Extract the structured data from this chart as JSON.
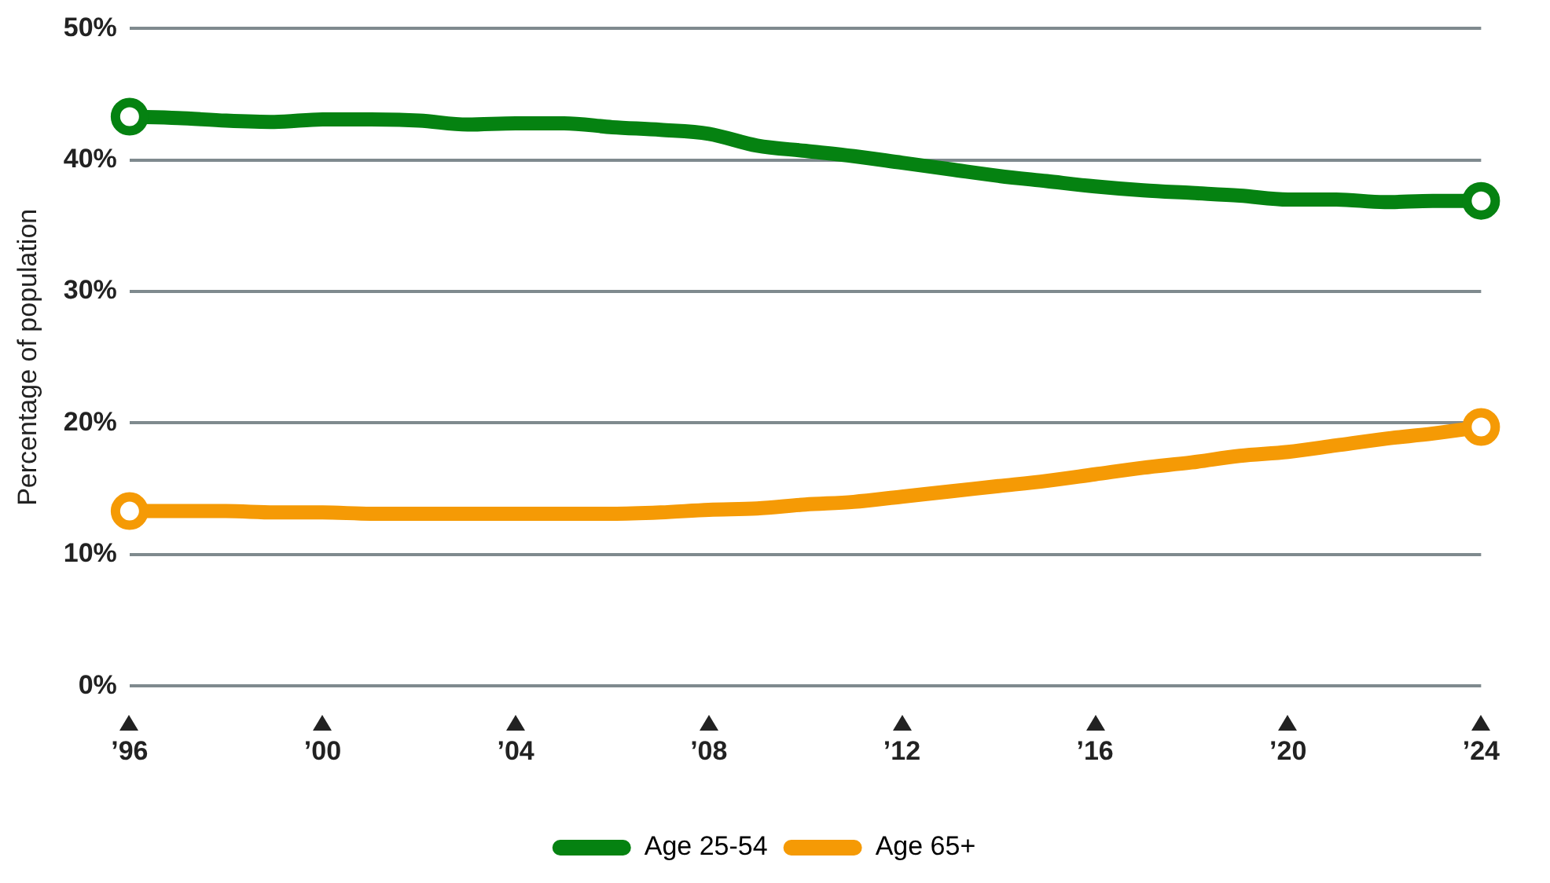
{
  "chart_data": {
    "type": "line",
    "ylabel": "Percentage of population",
    "x": [
      1996,
      1997,
      1998,
      1999,
      2000,
      2001,
      2002,
      2003,
      2004,
      2005,
      2006,
      2007,
      2008,
      2009,
      2010,
      2011,
      2012,
      2013,
      2014,
      2015,
      2016,
      2017,
      2018,
      2019,
      2020,
      2021,
      2022,
      2023,
      2024
    ],
    "series": [
      {
        "name": "Age 25-54",
        "color": "#058211",
        "values": [
          43.3,
          43.2,
          43.0,
          42.9,
          43.1,
          43.1,
          43.0,
          42.7,
          42.8,
          42.8,
          42.5,
          42.3,
          42.0,
          41.1,
          40.7,
          40.3,
          39.8,
          39.3,
          38.8,
          38.4,
          38.0,
          37.7,
          37.5,
          37.3,
          37.0,
          37.0,
          36.8,
          36.9,
          36.9
        ]
      },
      {
        "name": "Age 65+",
        "color": "#f59a05",
        "values": [
          13.3,
          13.3,
          13.3,
          13.2,
          13.2,
          13.1,
          13.1,
          13.1,
          13.1,
          13.1,
          13.1,
          13.2,
          13.4,
          13.5,
          13.8,
          14.0,
          14.4,
          14.8,
          15.2,
          15.6,
          16.1,
          16.6,
          17.0,
          17.5,
          17.8,
          18.3,
          18.8,
          19.2,
          19.7
        ]
      }
    ],
    "xlim": [
      1996,
      2024
    ],
    "xticks": [
      {
        "value": 1996,
        "label": "’96"
      },
      {
        "value": 2000,
        "label": "’00"
      },
      {
        "value": 2004,
        "label": "’04"
      },
      {
        "value": 2008,
        "label": "’08"
      },
      {
        "value": 2012,
        "label": "’12"
      },
      {
        "value": 2016,
        "label": "’16"
      },
      {
        "value": 2020,
        "label": "’20"
      },
      {
        "value": 2024,
        "label": "’24"
      }
    ],
    "ylim": [
      0,
      50
    ],
    "yticks": [
      {
        "value": 0,
        "label": "0%"
      },
      {
        "value": 10,
        "label": "10%"
      },
      {
        "value": 20,
        "label": "20%"
      },
      {
        "value": 30,
        "label": "30%"
      },
      {
        "value": 40,
        "label": "40%"
      },
      {
        "value": 50,
        "label": "50%"
      }
    ],
    "grid": "y",
    "legend": "bottom",
    "line_style": "solid"
  }
}
